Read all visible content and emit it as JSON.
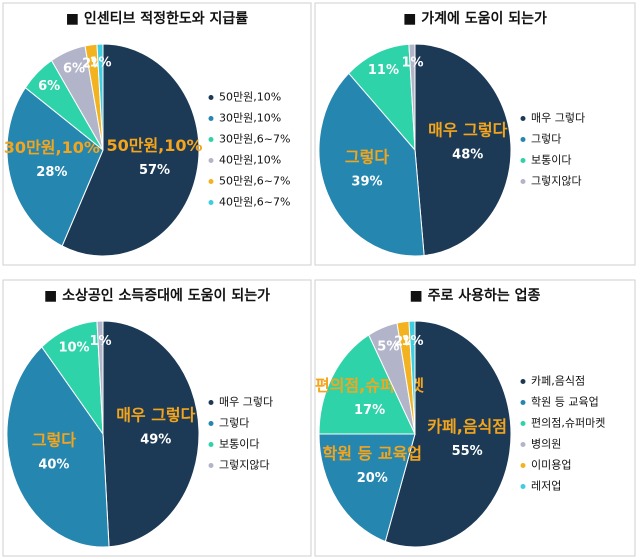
{
  "chart_data": [
    {
      "type": "pie",
      "title": "■ 인센티브 적정한도와 지급률",
      "categories": [
        "50만원,10%",
        "30만원,10%",
        "30만원,6~7%",
        "40만원,10%",
        "50만원,6~7%",
        "40만원,6~7%"
      ],
      "values": [
        57,
        28,
        6,
        6,
        2,
        1
      ],
      "value_labels": [
        "57%",
        "28%",
        "6%",
        "6%",
        "2%",
        "1%"
      ],
      "colors": [
        "#1c3a56",
        "#2586b0",
        "#2fd3a9",
        "#b2b5c9",
        "#f3b21f",
        "#3fcde0"
      ],
      "legend": "right"
    },
    {
      "type": "pie",
      "title": "■ 가계에 도움이 되는가",
      "categories": [
        "매우 그렇다",
        "그렇다",
        "보통이다",
        "그렇지않다"
      ],
      "values": [
        48,
        39,
        11,
        1
      ],
      "value_labels": [
        "48%",
        "39%",
        "11%",
        "1%"
      ],
      "colors": [
        "#1c3a56",
        "#2586b0",
        "#2fd3a9",
        "#b2b5c9"
      ],
      "legend": "right"
    },
    {
      "type": "pie",
      "title": "■ 소상공인 소득증대에 도움이 되는가",
      "categories": [
        "매우 그렇다",
        "그렇다",
        "보통이다",
        "그렇지않다"
      ],
      "values": [
        49,
        40,
        10,
        1
      ],
      "value_labels": [
        "49%",
        "40%",
        "10%",
        "1%"
      ],
      "colors": [
        "#1c3a56",
        "#2586b0",
        "#2fd3a9",
        "#b2b5c9"
      ],
      "legend": "right"
    },
    {
      "type": "pie",
      "title": "■ 주로 사용하는 업종",
      "categories": [
        "카페,음식점",
        "학원 등 교육업",
        "편의점,슈퍼마켓",
        "병의원",
        "이미용업",
        "레저업"
      ],
      "values": [
        55,
        20,
        17,
        5,
        2,
        1
      ],
      "value_labels": [
        "55%",
        "20%",
        "17%",
        "5%",
        "2%",
        "1%"
      ],
      "colors": [
        "#1c3a56",
        "#2586b0",
        "#2fd3a9",
        "#b2b5c9",
        "#f3b21f",
        "#3fcde0"
      ],
      "legend": "right"
    }
  ]
}
